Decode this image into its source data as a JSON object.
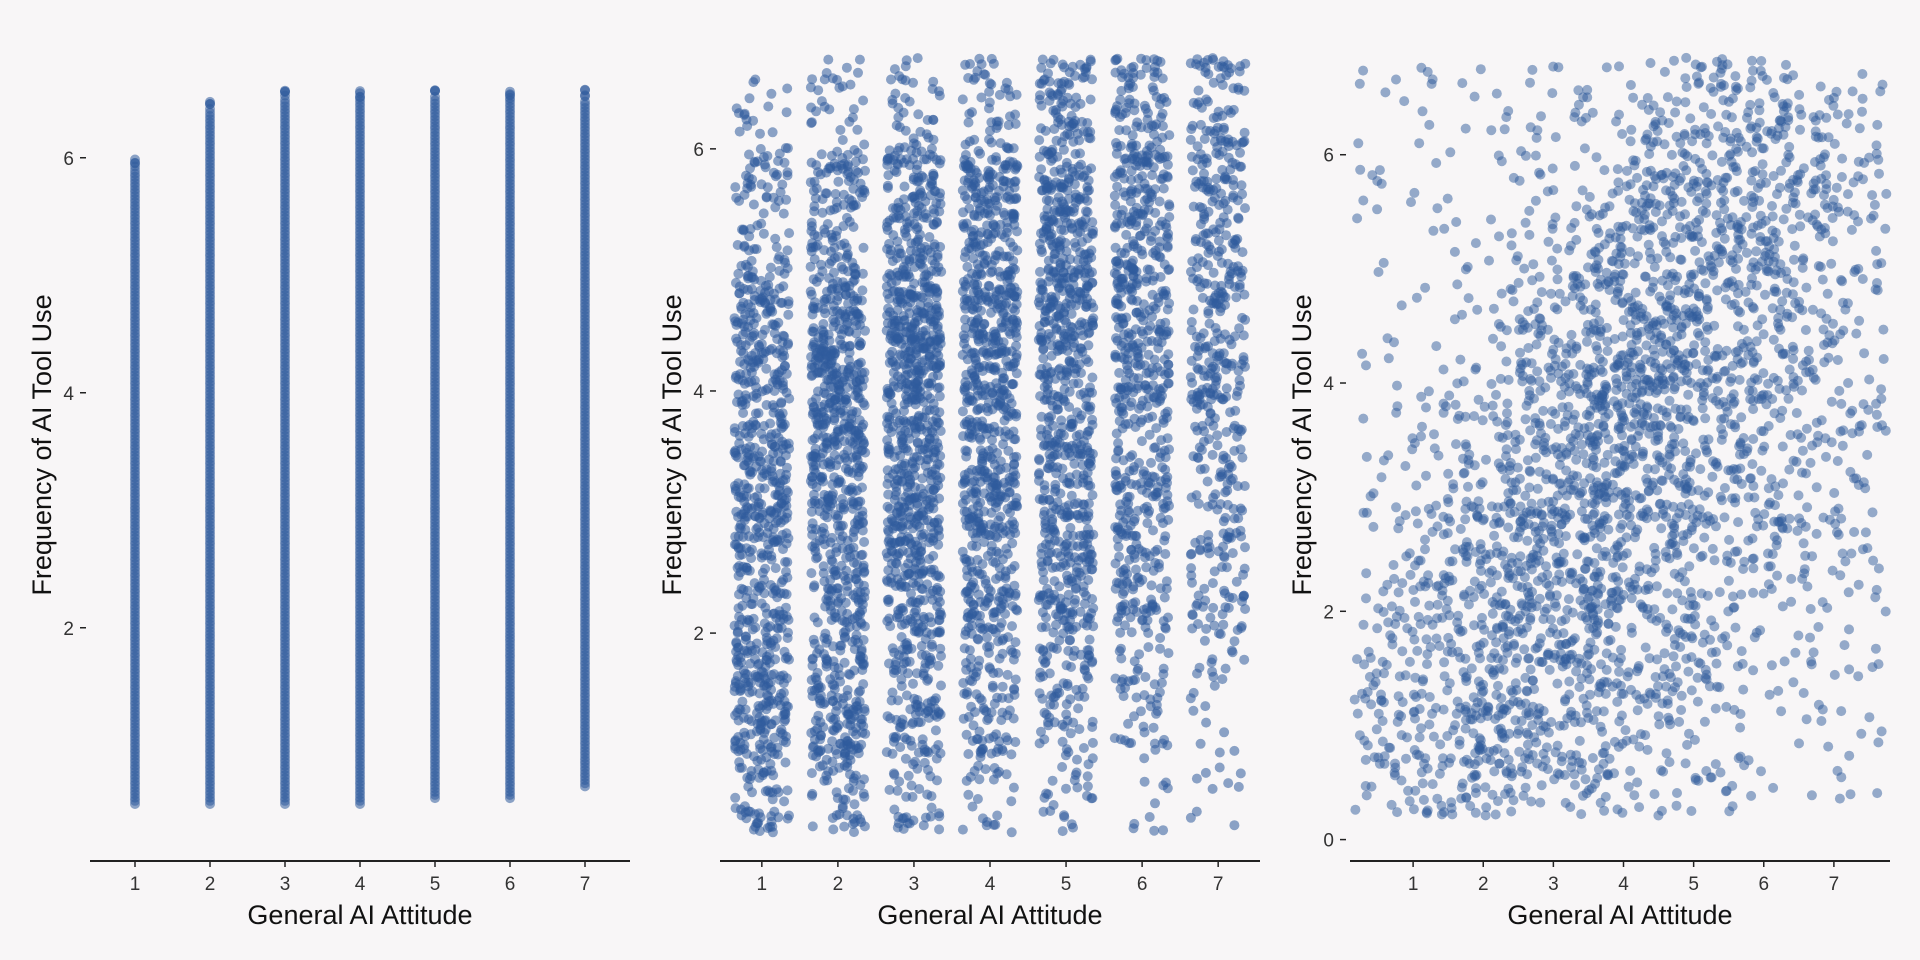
{
  "chart_data": [
    {
      "type": "scatter",
      "panel": "raw",
      "xlabel": "General AI Attitude",
      "ylabel": "Frequency of AI Tool Use",
      "x_ticks": [
        "1",
        "2",
        "3",
        "4",
        "5",
        "6",
        "7"
      ],
      "y_ticks": [
        "2",
        "4",
        "6"
      ],
      "xlim": [
        0.4,
        7.6
      ],
      "ylim": [
        0.1,
        6.9
      ],
      "point_color": "#2f5b9c",
      "jitter": "none",
      "point_columns": [
        {
          "x": 1,
          "y_min": 0.5,
          "y_max": 5.9
        },
        {
          "x": 2,
          "y_min": 0.5,
          "y_max": 6.4
        },
        {
          "x": 3,
          "y_min": 0.5,
          "y_max": 6.5
        },
        {
          "x": 4,
          "y_min": 0.5,
          "y_max": 6.5
        },
        {
          "x": 5,
          "y_min": 0.55,
          "y_max": 6.5
        },
        {
          "x": 6,
          "y_min": 0.55,
          "y_max": 6.5
        },
        {
          "x": 7,
          "y_min": 0.65,
          "y_max": 6.5
        }
      ]
    },
    {
      "type": "scatter",
      "panel": "jitter-x",
      "xlabel": "General AI Attitude",
      "ylabel": "Frequency of AI Tool Use",
      "x_ticks": [
        "1",
        "2",
        "3",
        "4",
        "5",
        "6",
        "7"
      ],
      "y_ticks": [
        "2",
        "4",
        "6"
      ],
      "xlim": [
        0.45,
        7.55
      ],
      "ylim": [
        0.2,
        6.8
      ],
      "point_color": "#2f5b9c",
      "jitter": "horizontal",
      "y_levels": [
        0.5,
        1.5,
        2.5,
        3.5,
        4.5,
        5.5,
        6.5
      ],
      "level_counts": [
        [
          90,
          80,
          60,
          45,
          35,
          20,
          15
        ],
        [
          170,
          160,
          110,
          95,
          80,
          50,
          25
        ],
        [
          150,
          140,
          190,
          150,
          160,
          110,
          70
        ],
        [
          160,
          210,
          200,
          180,
          150,
          120,
          90
        ],
        [
          150,
          200,
          250,
          210,
          190,
          160,
          110
        ],
        [
          70,
          110,
          150,
          170,
          170,
          150,
          100
        ],
        [
          25,
          40,
          55,
          70,
          100,
          110,
          95
        ]
      ]
    },
    {
      "type": "scatter",
      "panel": "jitter-xy",
      "xlabel": "General AI Attitude",
      "ylabel": "Frequency of AI Tool Use",
      "x_ticks": [
        "1",
        "2",
        "3",
        "4",
        "5",
        "6",
        "7"
      ],
      "y_ticks": [
        "0",
        "2",
        "4",
        "6"
      ],
      "xlim": [
        0.1,
        7.8
      ],
      "ylim": [
        -0.1,
        6.9
      ],
      "point_color": "#2f5b9c",
      "jitter": "both",
      "clusters": [
        {
          "x": 1.5,
          "y": 1.0,
          "n": 320
        },
        {
          "x": 2.4,
          "y": 2.4,
          "n": 300
        },
        {
          "x": 3.3,
          "y": 1.3,
          "n": 340
        },
        {
          "x": 3.6,
          "y": 3.5,
          "n": 380
        },
        {
          "x": 4.3,
          "y": 4.5,
          "n": 380
        },
        {
          "x": 5.3,
          "y": 5.6,
          "n": 340
        },
        {
          "x": 6.4,
          "y": 5.3,
          "n": 260
        },
        {
          "x": 4.5,
          "y": 2.6,
          "n": 240
        },
        {
          "x": 6.3,
          "y": 3.2,
          "n": 140
        }
      ]
    }
  ]
}
